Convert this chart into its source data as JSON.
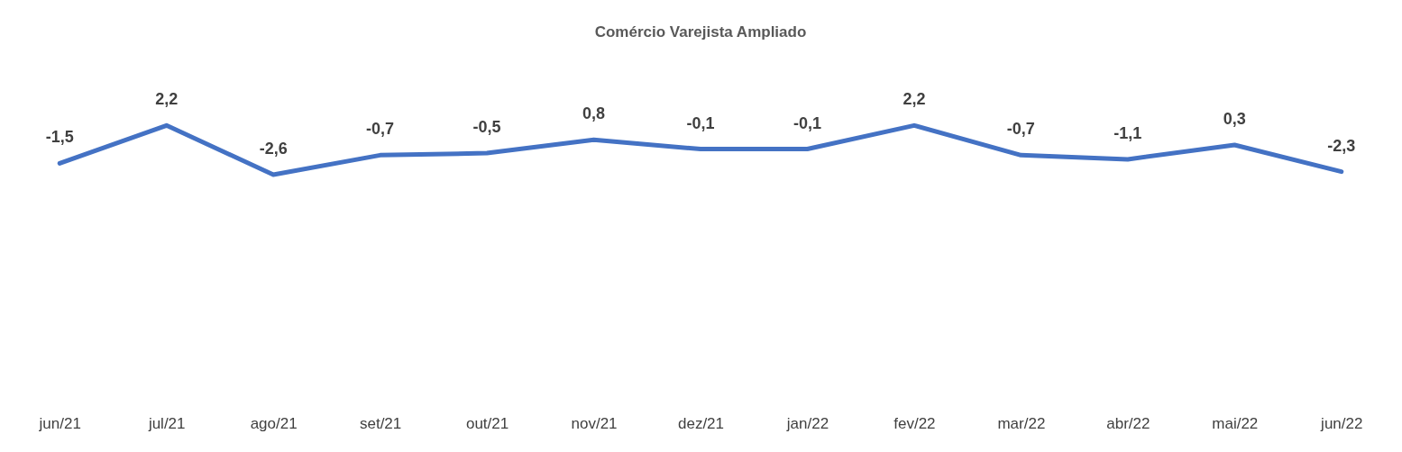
{
  "chart_data": {
    "type": "line",
    "title": "Comércio Varejista Ampliado",
    "categories": [
      "jun/21",
      "jul/21",
      "ago/21",
      "set/21",
      "out/21",
      "nov/21",
      "dez/21",
      "jan/22",
      "fev/22",
      "mar/22",
      "abr/22",
      "mai/22",
      "jun/22"
    ],
    "series": [
      {
        "color": "#4472c4",
        "values": [
          -1.5,
          2.2,
          -2.6,
          -0.7,
          -0.5,
          0.8,
          -0.1,
          -0.1,
          2.2,
          -0.7,
          -1.1,
          0.3,
          -2.3
        ],
        "value_labels": [
          "-1,5",
          "2,2",
          "-2,6",
          "-0,7",
          "-0,5",
          "0,8",
          "-0,1",
          "-0,1",
          "2,2",
          "-0,7",
          "-1,1",
          "0,3",
          "-2,3"
        ]
      }
    ],
    "grid": false,
    "marker": "none",
    "line_style": "solid"
  }
}
